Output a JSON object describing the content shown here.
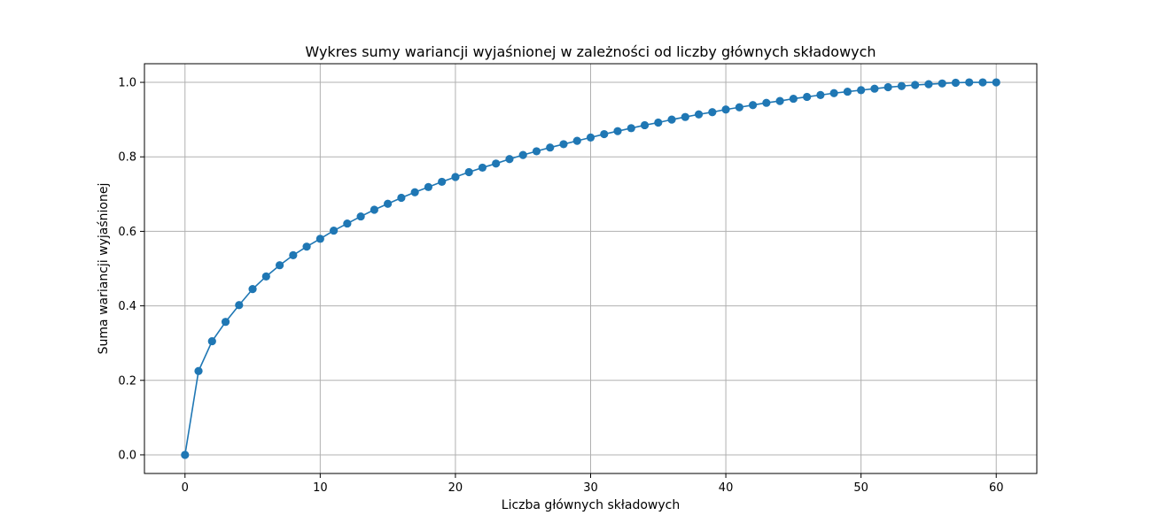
{
  "chart_data": {
    "type": "line",
    "title": "Wykres sumy wariancji wyjaśnionej w zależności od liczby głównych składowych",
    "xlabel": "Liczba głównych składowych",
    "ylabel": "Suma wariancji wyjaśnionej",
    "xlim": [
      -3,
      63
    ],
    "ylim": [
      -0.05,
      1.05
    ],
    "xticks": [
      0,
      10,
      20,
      30,
      40,
      50,
      60
    ],
    "xtick_labels": [
      "0",
      "10",
      "20",
      "30",
      "40",
      "50",
      "60"
    ],
    "yticks": [
      0.0,
      0.2,
      0.4,
      0.6,
      0.8,
      1.0
    ],
    "ytick_labels": [
      "0.0",
      "0.2",
      "0.4",
      "0.6",
      "0.8",
      "1.0"
    ],
    "grid": true,
    "marker": "circle",
    "color": "#1f77b4",
    "series": [
      {
        "x": [
          0,
          1,
          2,
          3,
          4,
          5,
          6,
          7,
          8,
          9,
          10,
          11,
          12,
          13,
          14,
          15,
          16,
          17,
          18,
          19,
          20,
          21,
          22,
          23,
          24,
          25,
          26,
          27,
          28,
          29,
          30,
          31,
          32,
          33,
          34,
          35,
          36,
          37,
          38,
          39,
          40,
          41,
          42,
          43,
          44,
          45,
          46,
          47,
          48,
          49,
          50,
          51,
          52,
          53,
          54,
          55,
          56,
          57,
          58,
          59,
          60
        ],
        "values": [
          0.0,
          0.225,
          0.305,
          0.357,
          0.402,
          0.445,
          0.479,
          0.509,
          0.536,
          0.559,
          0.58,
          0.602,
          0.621,
          0.64,
          0.658,
          0.674,
          0.69,
          0.705,
          0.719,
          0.733,
          0.746,
          0.759,
          0.771,
          0.782,
          0.794,
          0.805,
          0.815,
          0.825,
          0.834,
          0.843,
          0.852,
          0.861,
          0.869,
          0.877,
          0.885,
          0.892,
          0.9,
          0.907,
          0.914,
          0.92,
          0.927,
          0.933,
          0.939,
          0.945,
          0.95,
          0.956,
          0.961,
          0.966,
          0.971,
          0.975,
          0.979,
          0.983,
          0.987,
          0.99,
          0.993,
          0.995,
          0.997,
          0.999,
          1.0,
          1.0,
          1.0
        ]
      }
    ]
  }
}
